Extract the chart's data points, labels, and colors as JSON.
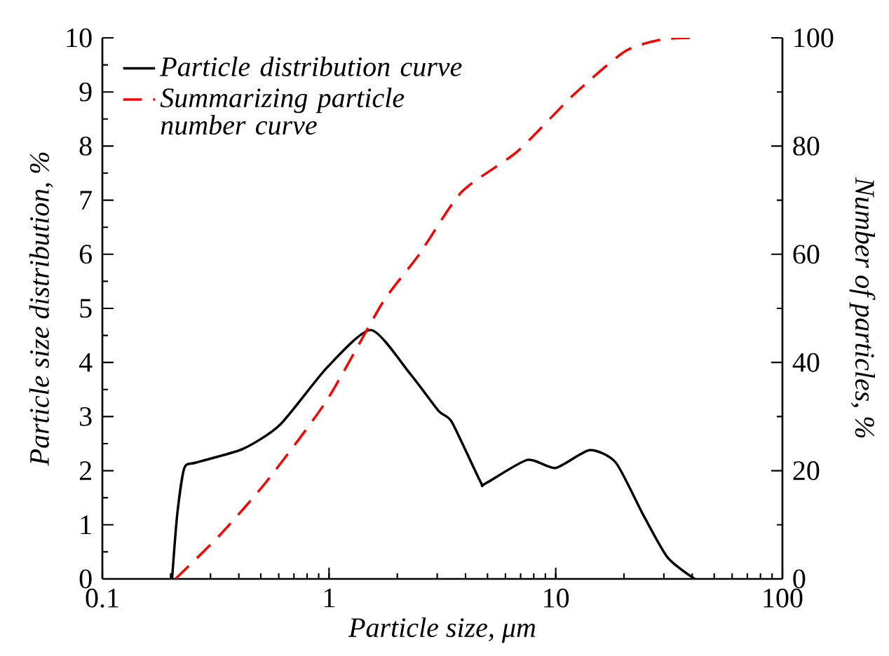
{
  "chart_data": {
    "type": "line",
    "xlabel": "Particle size, μm",
    "ylabel": "Particle size distribution, %",
    "y2label": "Number of particles, %",
    "log": "x",
    "legend": "top left",
    "marker": "none",
    "grid": false,
    "xlim": [
      0.1,
      100
    ],
    "xticks": [
      0.1,
      1,
      10,
      100
    ],
    "ylim": [
      0,
      10
    ],
    "yticks": [
      0,
      1,
      2,
      3,
      4,
      5,
      6,
      7,
      8,
      9,
      10
    ],
    "y2lim": [
      0,
      100
    ],
    "y2ticks": [
      0,
      20,
      40,
      60,
      80,
      100
    ],
    "series": [
      {
        "name": "Particle distribution curve",
        "color": "#000000",
        "line_style": "solid",
        "x": [
          0.203,
          0.214,
          0.23,
          0.259,
          0.416,
          0.608,
          0.977,
          1.53,
          2.27,
          3.05,
          3.48,
          4.65,
          4.88,
          7.5,
          9.97,
          14.1,
          18.4,
          24.2,
          31.1,
          41
        ],
        "values": [
          0,
          1.2,
          2.05,
          2.15,
          2.4,
          2.85,
          3.9,
          4.6,
          3.8,
          3.1,
          2.9,
          1.8,
          1.76,
          2.2,
          2.05,
          2.38,
          2.15,
          1.2,
          0.4,
          0
        ]
      },
      {
        "name": "Summarizing particle number curve",
        "color": "#ff0000",
        "line_style": "dashed",
        "axis": "y2",
        "x": [
          0.21,
          0.328,
          0.53,
          0.977,
          1.72,
          2.5,
          3.84,
          6.77,
          12.0,
          20.2,
          29.4,
          41
        ],
        "values": [
          0,
          8,
          18,
          33,
          51,
          60,
          71.5,
          79,
          89.5,
          97.5,
          99.7,
          100
        ]
      }
    ]
  }
}
